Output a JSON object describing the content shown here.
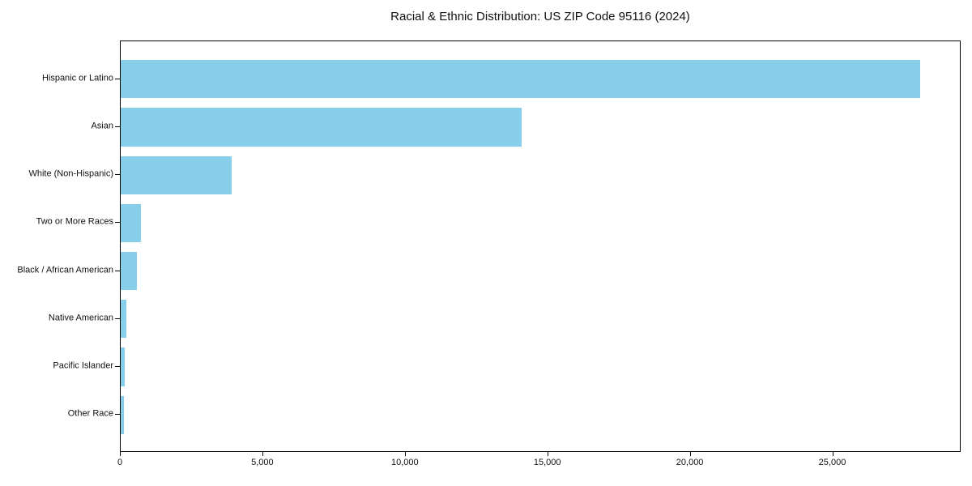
{
  "figure": {
    "background": "#ffffff",
    "axis_color": "#000000",
    "text_color": "#111111"
  },
  "chart_data": {
    "type": "bar",
    "orientation": "horizontal",
    "title": "Racial & Ethnic Distribution: US ZIP Code 95116 (2024)",
    "categories": [
      "Hispanic or Latino",
      "Asian",
      "White (Non-Hispanic)",
      "Two or More Races",
      "Black / African American",
      "Native American",
      "Pacific Islander",
      "Other Race"
    ],
    "values": [
      28100,
      14100,
      3900,
      720,
      580,
      210,
      150,
      120
    ],
    "bar_color": "#87CEEB",
    "xlabel": "",
    "ylabel": "",
    "xlim": [
      0,
      29505
    ],
    "xticks": {
      "values": [
        0,
        5000,
        10000,
        15000,
        20000,
        25000
      ],
      "labels": [
        "0",
        "5,000",
        "10,000",
        "15,000",
        "20,000",
        "25,000"
      ]
    },
    "grid": false,
    "legend": "none"
  }
}
